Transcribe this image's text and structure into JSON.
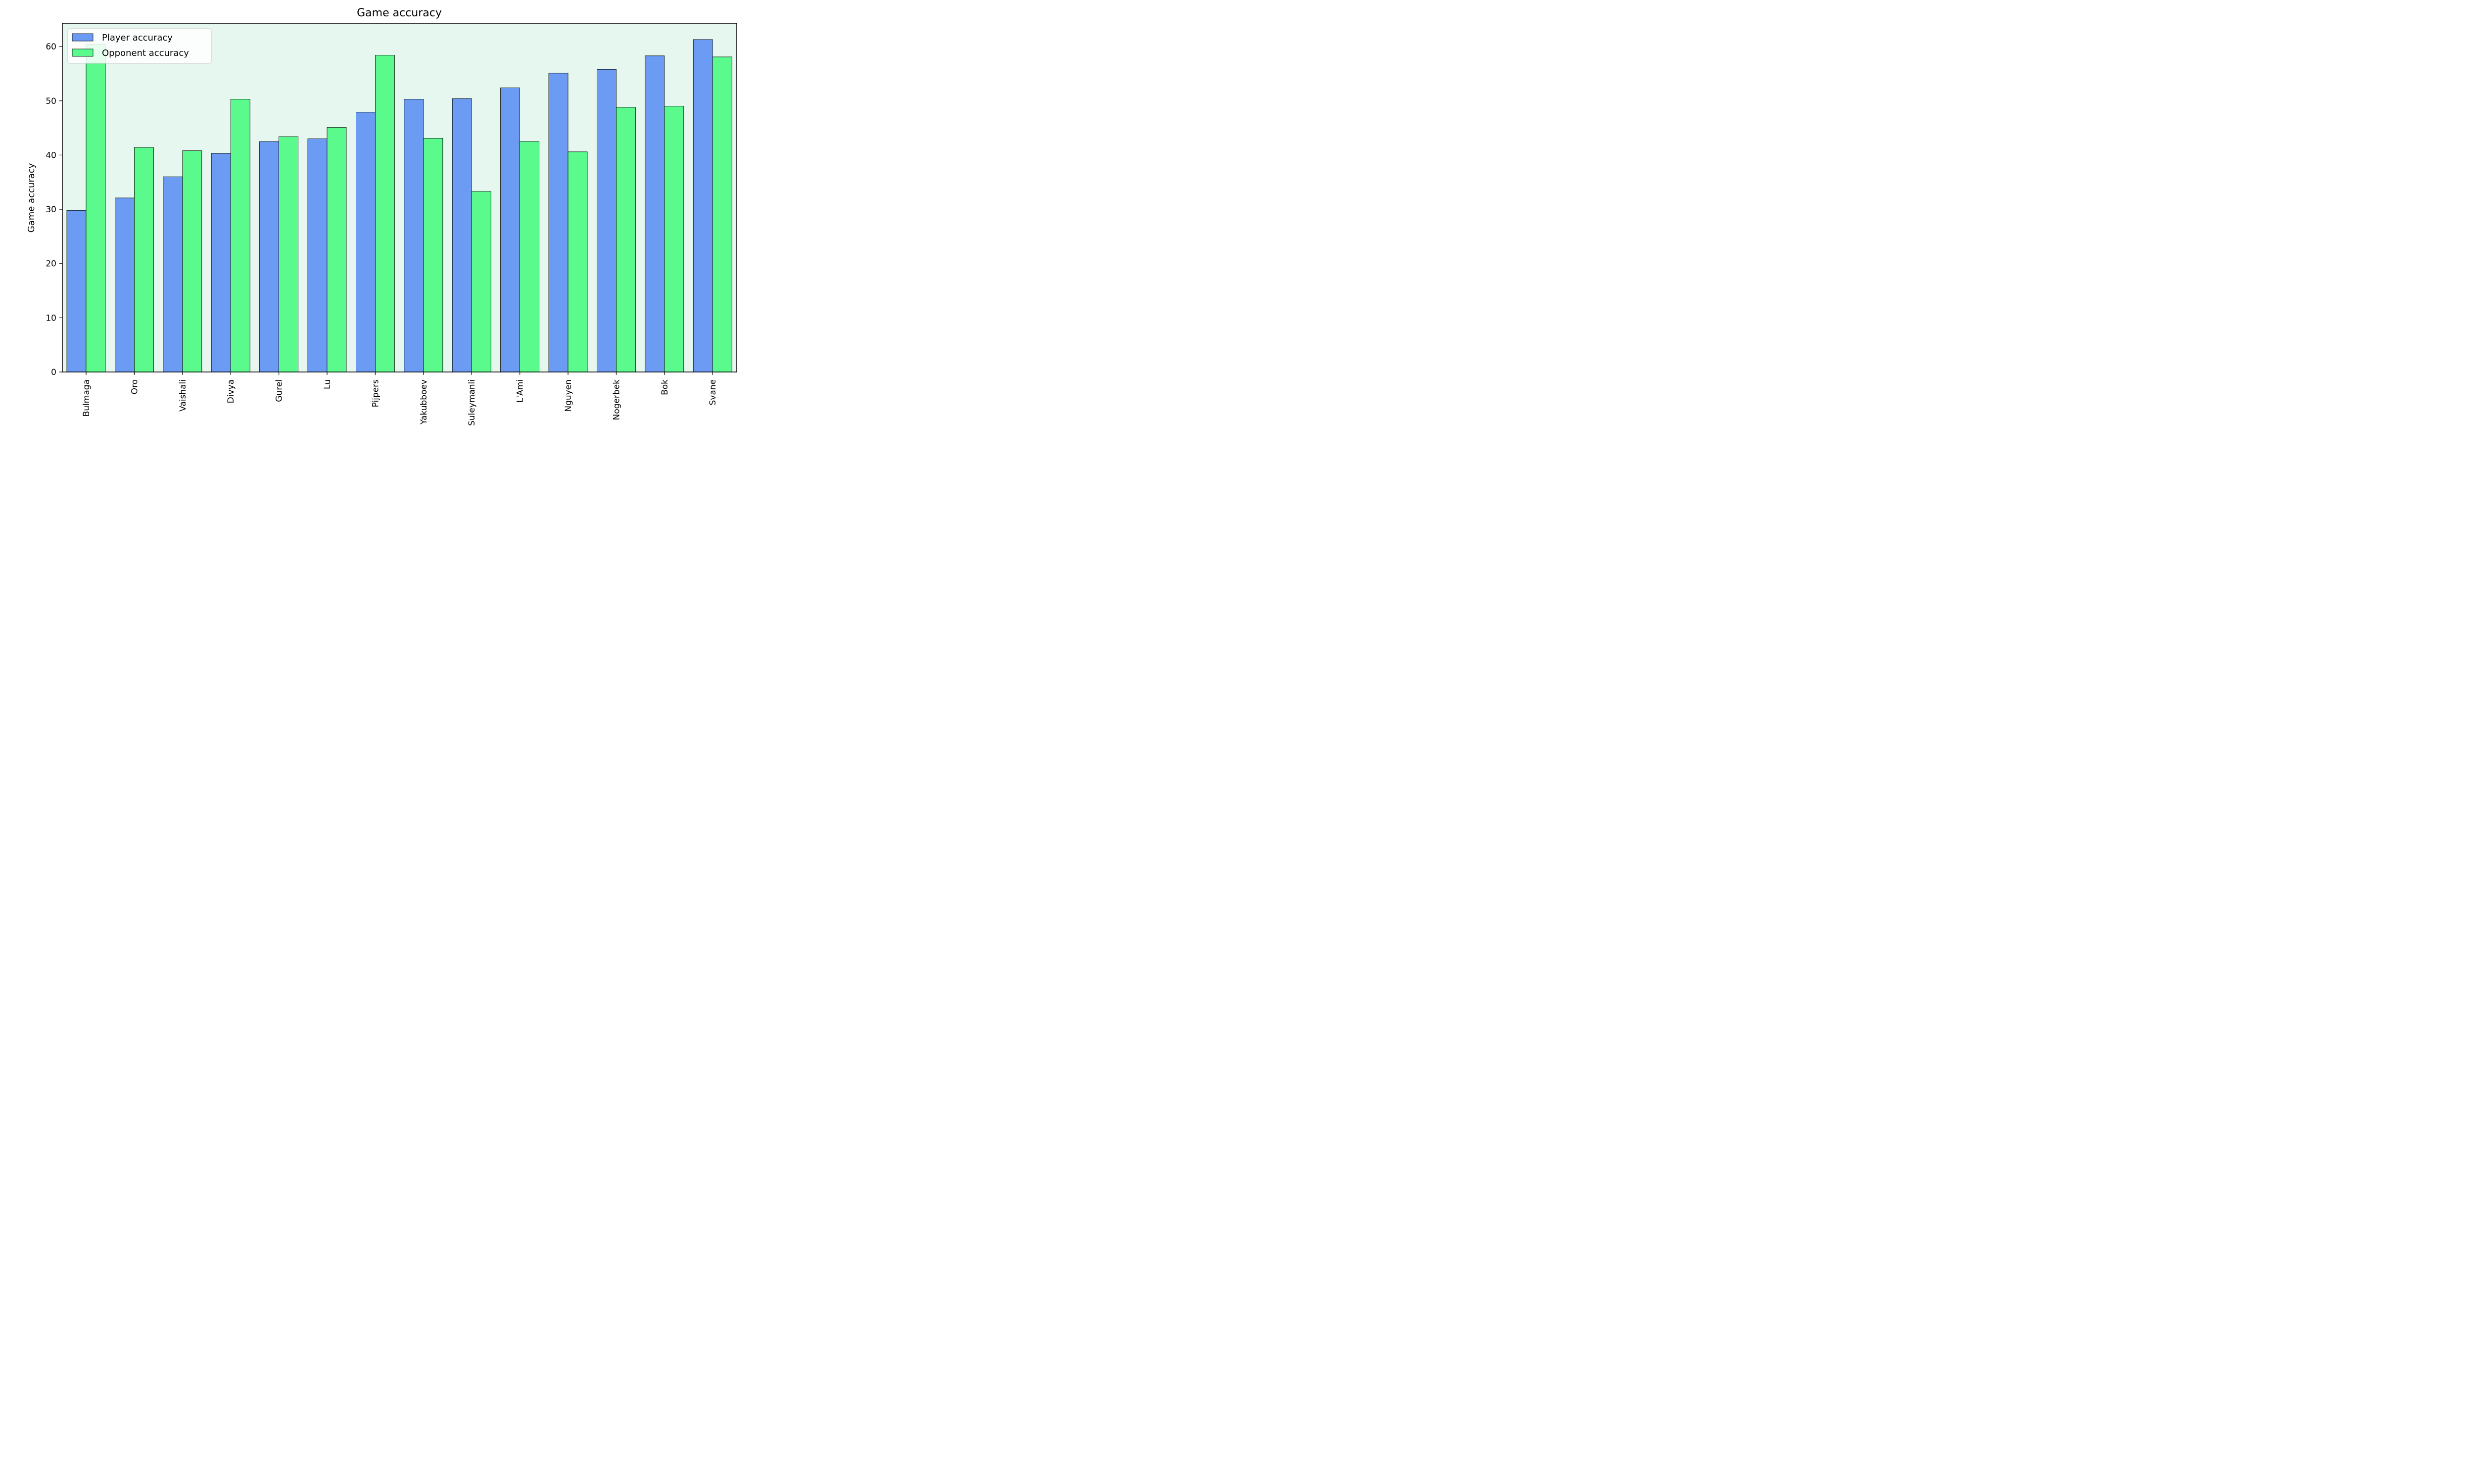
{
  "chart_data": {
    "type": "bar",
    "title": "Game accuracy",
    "xlabel": "",
    "ylabel": "Game accuracy",
    "ylim": [
      0,
      64.3
    ],
    "yticks": [
      0,
      10,
      20,
      30,
      40,
      50,
      60
    ],
    "grid": false,
    "legend_position": "top-left",
    "plot_background": "#e6f7f0",
    "categories": [
      "Bulmaga",
      "Oro",
      "Vaishali",
      "Divya",
      "Gurel",
      "Lu",
      "Pijpers",
      "Yakubboev",
      "Suleymanli",
      "L'Ami",
      "Nguyen",
      "Nogerbek",
      "Bok",
      "Svane"
    ],
    "series": [
      {
        "name": "Player accuracy",
        "color": "#6b9bf2",
        "values": [
          29.8,
          32.1,
          36.0,
          40.3,
          42.5,
          43.0,
          47.9,
          50.3,
          50.4,
          52.4,
          55.1,
          55.8,
          58.3,
          61.3
        ]
      },
      {
        "name": "Opponent accuracy",
        "color": "#5afb8c",
        "values": [
          60.4,
          41.4,
          40.8,
          50.3,
          43.4,
          45.1,
          58.4,
          43.1,
          33.3,
          42.5,
          40.6,
          48.8,
          49.0,
          58.1
        ]
      }
    ]
  }
}
